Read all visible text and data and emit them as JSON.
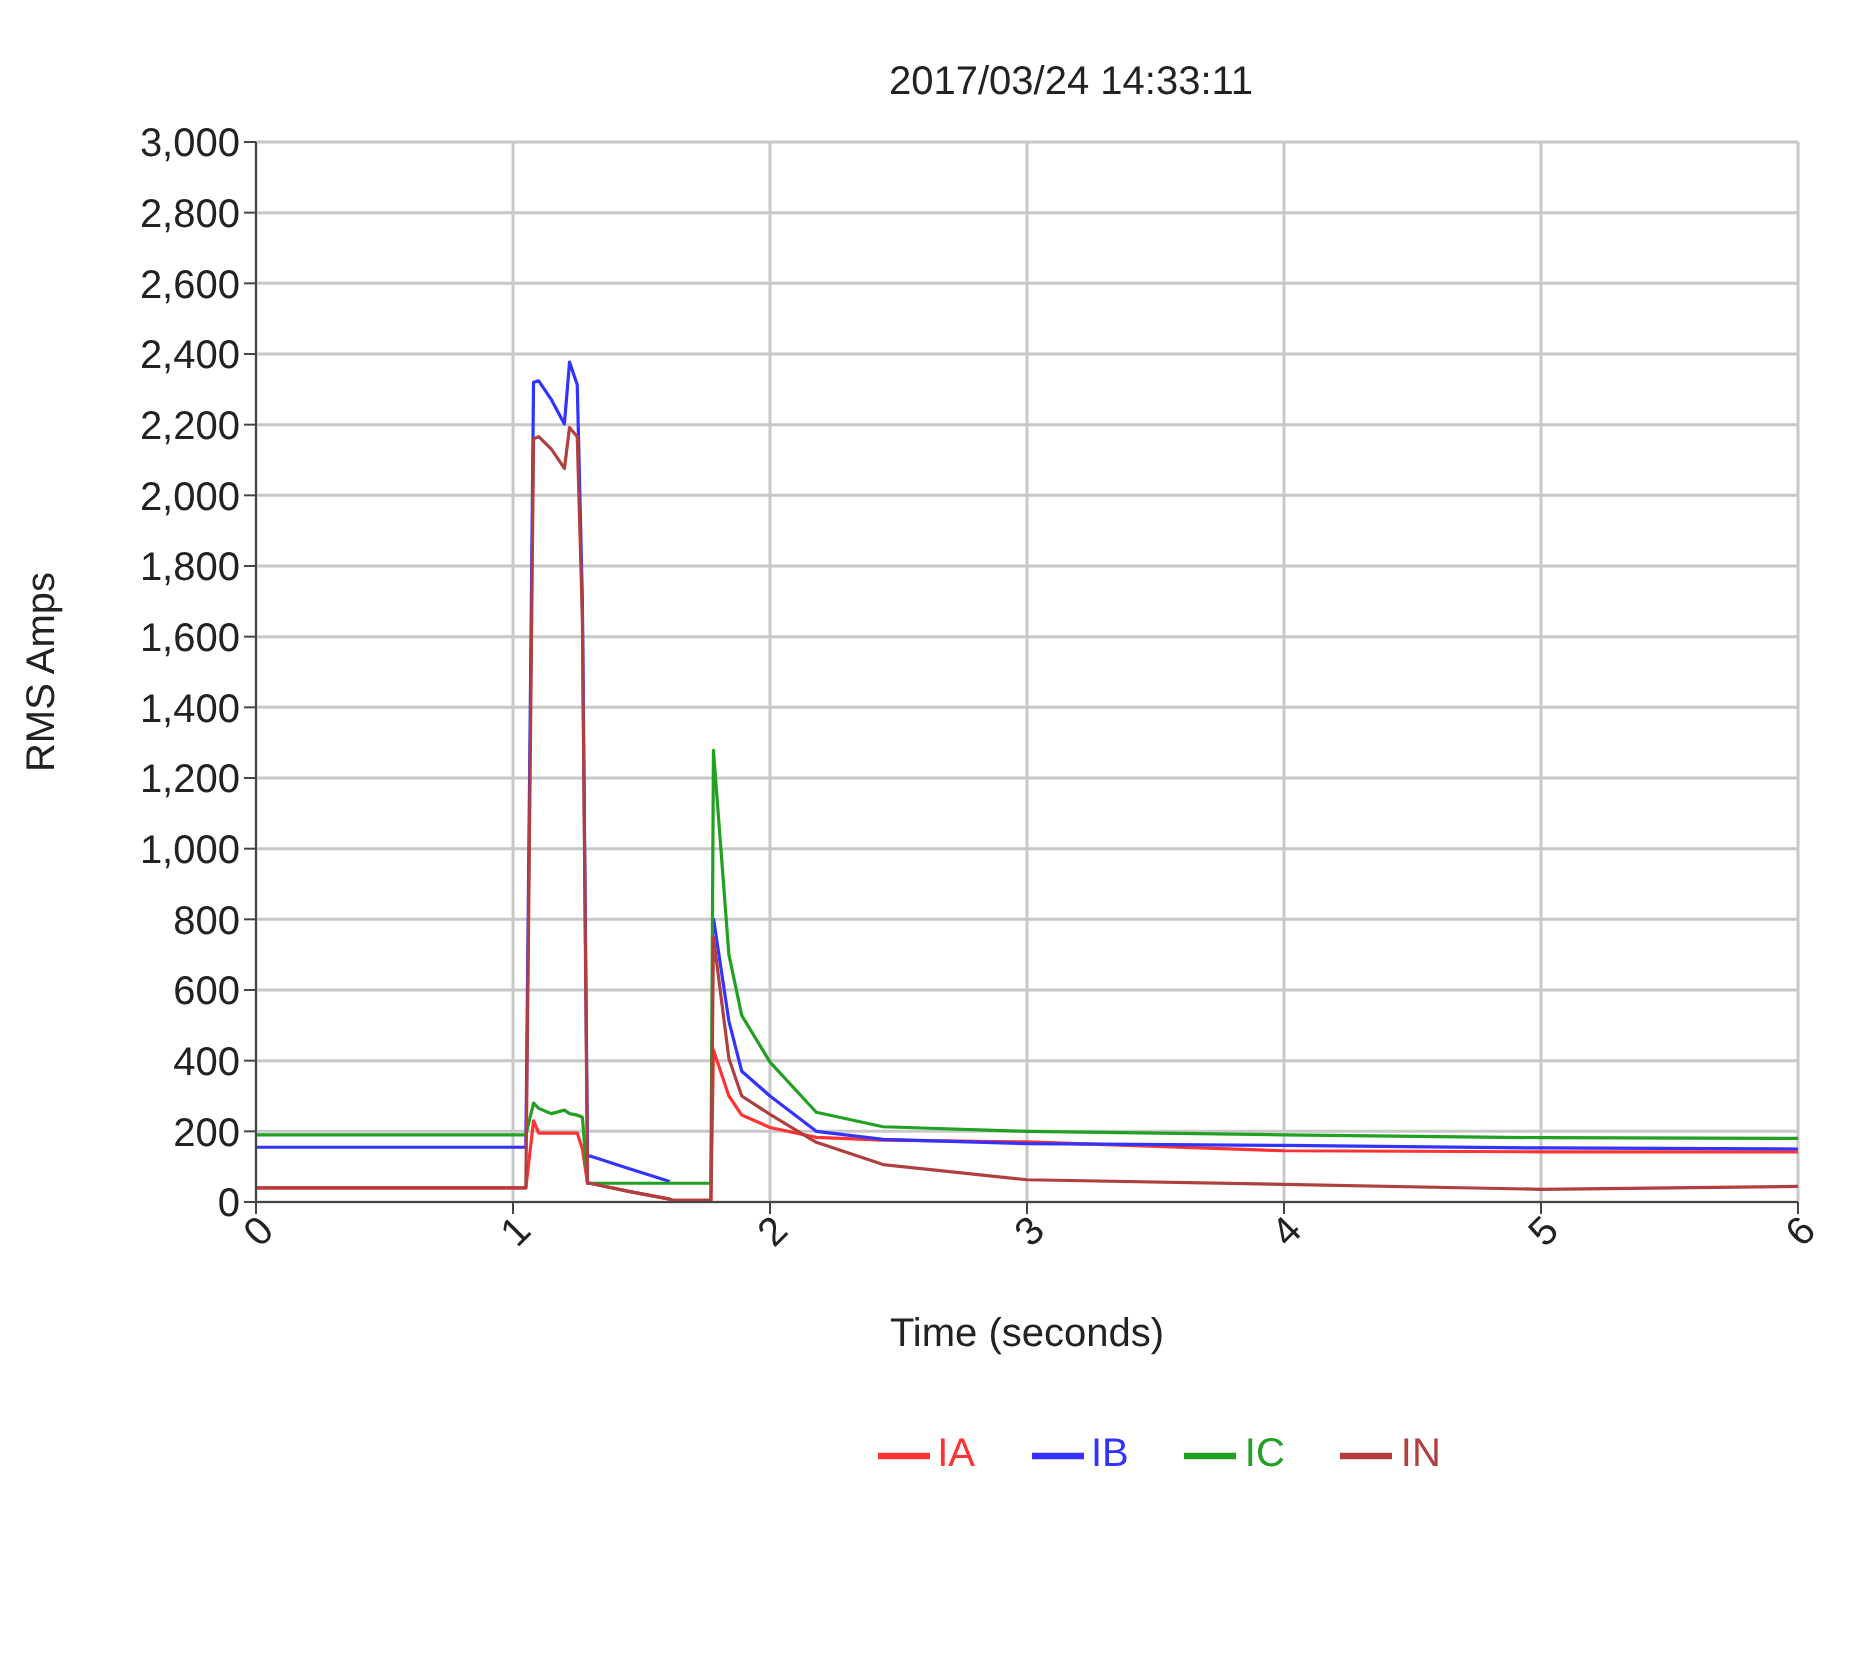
{
  "chart_data": {
    "type": "line",
    "title": "2017/03/24 14:33:11",
    "xlabel": "Time (seconds)",
    "ylabel": "RMS Amps",
    "x": [
      0,
      1.05,
      1.08,
      1.1,
      1.15,
      1.2,
      1.22,
      1.25,
      1.27,
      1.29,
      1.3,
      1.45,
      1.61,
      1.62,
      1.77,
      1.78,
      1.84,
      1.89,
      2.0,
      2.18,
      2.44,
      3,
      4,
      5,
      6
    ],
    "series": [
      {
        "name": "IA",
        "color": "#ff3333",
        "values": [
          40,
          40,
          230,
          195,
          195,
          195,
          195,
          195,
          150,
          53,
          53,
          30,
          8,
          5,
          5,
          430,
          300,
          246,
          211,
          183,
          175,
          170,
          145,
          142,
          142
        ]
      },
      {
        "name": "IB",
        "color": "#3333ff",
        "values": [
          155,
          155,
          2320,
          2324,
          2270,
          2202,
          2377,
          2313,
          1700,
          130,
          130,
          95,
          58,
          null,
          null,
          803,
          512,
          370,
          300,
          200,
          177,
          165,
          160,
          153,
          150
        ]
      },
      {
        "name": "IC",
        "color": "#22a022",
        "values": [
          190,
          190,
          280,
          265,
          250,
          260,
          250,
          246,
          240,
          53,
          53,
          53,
          53,
          53,
          53,
          1278,
          700,
          528,
          396,
          254,
          213,
          200,
          190,
          182,
          180
        ]
      },
      {
        "name": "IN",
        "color": "#b04040",
        "values": [
          40,
          40,
          2160,
          2166,
          2130,
          2076,
          2192,
          2166,
          1650,
          53,
          53,
          30,
          8,
          5,
          5,
          750,
          406,
          300,
          248,
          169,
          106,
          63,
          50,
          36,
          44
        ]
      }
    ],
    "xlim": [
      0,
      6
    ],
    "xticks": [
      0,
      1,
      2,
      3,
      4,
      5,
      6
    ],
    "ylim": [
      0,
      3000
    ],
    "yticks": [
      0,
      200,
      400,
      600,
      800,
      {
        "value": 1000,
        "label": "1,000"
      },
      {
        "value": 1200,
        "label": "1,200"
      },
      {
        "value": 1400,
        "label": "1,400"
      },
      {
        "value": 1600,
        "label": "1,600"
      },
      {
        "value": 1800,
        "label": "1,800"
      },
      {
        "value": 2000,
        "label": "2,000"
      },
      {
        "value": 2200,
        "label": "2,200"
      },
      {
        "value": 2400,
        "label": "2,400"
      },
      {
        "value": 2600,
        "label": "2,600"
      },
      {
        "value": 2800,
        "label": "2,800"
      },
      {
        "value": 3000,
        "label": "3,000"
      }
    ],
    "grid": true,
    "legend": "bottom",
    "marker": "none",
    "line_style": "solid"
  }
}
